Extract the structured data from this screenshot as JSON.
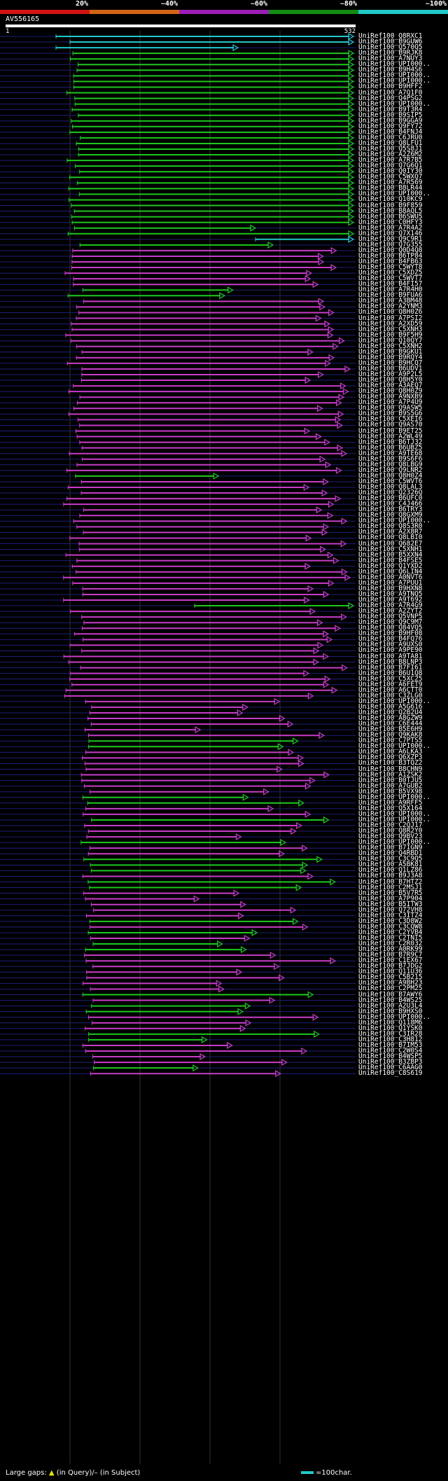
{
  "scale": {
    "labels": [
      "20%",
      "~40%",
      "~60%",
      "~80%",
      "~100%"
    ],
    "colors": [
      "#d21414",
      "#d26414",
      "#9c1eb4",
      "#148c14",
      "#22c8c8"
    ]
  },
  "query": {
    "title": "AV556165",
    "start": "1",
    "end": "532"
  },
  "colors": {
    "cyan": "#22c8c8",
    "green": "#1ec81e",
    "magenta": "#c83cc8",
    "guide": "#1e1e78"
  },
  "hits": [
    "UniRef100_Q8RXC1",
    "UniRef100_B9GUW6",
    "UniRef100_Q570Q5",
    "UniRef100_B9RJK8",
    "UniRef100_A7NUY3",
    "UniRef100_UPI000..",
    "UniRef100_B9H4S6",
    "UniRef100_UPI000..",
    "UniRef100_UPI000..",
    "UniRef100_B9HFF2",
    "UniRef100_A7Q1F0",
    "UniRef100_Q4PSG2",
    "UniRef100_UPI000..",
    "UniRef100_B9T3R4",
    "UniRef100_B9SIP5",
    "UniRef100_B9GGA9",
    "UniRef100_Q9FY72",
    "UniRef100_B4FNJ4",
    "UniRef100_C6JRU0",
    "UniRef100_Q8LFU1",
    "UniRef100_Q5S8J1",
    "UniRef100_A2Z6M2",
    "UniRef100_A7R7B5",
    "UniRef100_Q7G6Q1",
    "UniRef100_Q0IY30",
    "UniRef100_C5WXQ7",
    "UniRef100_A7R569",
    "UniRef100_B8LR44",
    "UniRef100_UPI000..",
    "UniRef100_Q10KC9",
    "UniRef100_B9F859",
    "UniRef100_B8AQL5",
    "UniRef100_B6SWU5",
    "UniRef100_C0HFY3",
    "UniRef100_A7R4A2",
    "UniRef100_Q7X146",
    "UniRef100_Q9C9R1",
    "UniRef100_Q7G355",
    "UniRef100_Q0D4Q8",
    "UniRef100_B6TP84",
    "UniRef100_B4FB63",
    "UniRef100_C5WYT8",
    "UniRef100_C5XDZ5",
    "UniRef100_C5WVT7",
    "UniRef100_B4FI57",
    "UniRef100_A7R4H0",
    "UniRef100_B9FUA6",
    "UniRef100_A3BM48",
    "UniRef100_A2YNM3",
    "UniRef100_Q8H0Z6",
    "UniRef100_A7PSI2",
    "UniRef100_A2XD59",
    "UniRef100_C5XNH3",
    "UniRef100_B9F5H9",
    "UniRef100_Q10QY7",
    "UniRef100_C5XNH2",
    "UniRef100_B9GKU1",
    "UniRef100_B9RQY4",
    "UniRef100_B9HCQ7",
    "UniRef100_B6UDV1",
    "UniRef100_A9P2L5",
    "UniRef100_Q8H5Y0",
    "UniRef100_A3AEQ7",
    "UniRef100_Q8H0Z9",
    "UniRef100_A9NXB9",
    "UniRef100_A7P4U9",
    "UniRef100_Q9ASW5",
    "UniRef100_B9S5G6",
    "UniRef100_C5XEI6",
    "UniRef100_Q9AS70",
    "UniRef100_B9ET25",
    "UniRef100_A2WL49",
    "UniRef100_B6TJ32",
    "UniRef100_B6UBZ5",
    "UniRef100_A9TE68",
    "UniRef100_B9S6F6",
    "UniRef100_Q8LBG9",
    "UniRef100_Q9LNR2",
    "UniRef100_Q8H0Z4",
    "UniRef100_C5WVT6",
    "UniRef100_Q8LAL3",
    "UniRef100_Q2326Q",
    "UniRef100_B6UFC0",
    "UniRef100_C4J466",
    "UniRef100_B6TRY3",
    "UniRef100_Q8GXM9",
    "UniRef100_UPI000..",
    "UniRef100_Q8S3R0",
    "UniRef100_A2X8R7",
    "UniRef100_Q8LBI0",
    "UniRef100_Q682E7",
    "UniRef100_C5XNH1",
    "UniRef100_B5XXN4",
    "UniRef100_B4FSE5",
    "UniRef100_Q1YXD2",
    "UniRef100_Q6LIN4",
    "UniRef100_A0NVT6",
    "UniRef100_A7PUU1",
    "UniRef100_B9HXN8",
    "UniRef100_A9TNQ5",
    "UniRef100_A9T692",
    "UniRef100_A7R4G9",
    "UniRef100_A2ZYT2",
    "UniRef100_Q5VNP5",
    "UniRef100_Q9C9M7",
    "UniRef100_Q84VQ5",
    "UniRef100_B9HF08",
    "UniRef100_B4FQ76",
    "UniRef100_A9UXS0",
    "UniRef100_A9PE90",
    "UniRef100_A9TA81",
    "UniRef100_B8LNP3",
    "UniRef100_B7FI61",
    "UniRef100_B6U1Q8",
    "UniRef100_C5XC25",
    "UniRef100_A6FET9",
    "UniRef100_A6CTT0",
    "UniRef100_C3ZLG0",
    "UniRef100_UPI000..",
    "UniRef100_A5G616",
    "UniRef100_Q2B2U4",
    "UniRef100_A8GZW9",
    "UniRef100_C6E444",
    "UniRef100_B5E6H9",
    "UniRef100_Q9KAK8",
    "UniRef100_C7PTS5",
    "UniRef100_UPI000..",
    "UniRef100_A6LKA3",
    "UniRef100_Q6XZP3",
    "UniRef100_B3TQZ2",
    "UniRef100_B8CHN9",
    "UniRef100_A1ZSK2",
    "UniRef100_B0TJU5",
    "UniRef100_A7GUB2",
    "UniRef100_B5VX98",
    "UniRef100_UPI000..",
    "UniRef100_A9RFF5",
    "UniRef100_Q5X164",
    "UniRef100_UPI000..",
    "UniRef100_UPI000..",
    "UniRef100_C2QJ17",
    "UniRef100_Q8R2Y0",
    "UniRef100_Q9BV23",
    "UniRef100_UPI000..",
    "UniRef100_B7IGN9",
    "UniRef100_Q4RBD1",
    "UniRef100_C3C9Q5",
    "UniRef100_A5BK81",
    "UniRef100_Q1LZ86",
    "UniRef100_B9J3A8",
    "UniRef100_B7HTZ2",
    "UniRef100_C2MSJ1",
    "UniRef100_B5V7R5",
    "UniRef100_A7P904",
    "UniRef100_B5ITW3",
    "UniRef100_Q72VH8",
    "UniRef100_C3ITZ4",
    "UniRef100_C3D8W2",
    "UniRef100_C3CQW8",
    "UniRef100_C2YVB4",
    "UniRef100_C2TNI5",
    "UniRef100_C2R032",
    "UniRef100_A0RK99",
    "UniRef100_B7R9C7",
    "UniRef100_C1EX67",
    "UniRef100_B7JDG2",
    "UniRef100_Q11U36",
    "UniRef100_C5B215",
    "UniRef100_A9BH23",
    "UniRef100_C2PM25",
    "UniRef100_B7AWY6",
    "UniRef100_B4WS25",
    "UniRef100_A2U3L4",
    "UniRef100_B9HXS0",
    "UniRef100_UPI000..",
    "UniRef100_Q118M6",
    "UniRef100_Q1YSK0",
    "UniRef100_C3IR28",
    "UniRef100_C3H812",
    "UniRef100_B7IM53",
    "UniRef100_C2W0S4",
    "UniRef100_B4WSP5",
    "UniRef100_B3ZBP3",
    "UniRef100_C6AAG0",
    "UniRef100_C8S619"
  ],
  "footer": {
    "gaps_label": "Large gaps:",
    "query_mark": "▲",
    "query_text": "(in Query)/–",
    "subject_text": "(in Subject)",
    "scale_text": "=100char."
  }
}
